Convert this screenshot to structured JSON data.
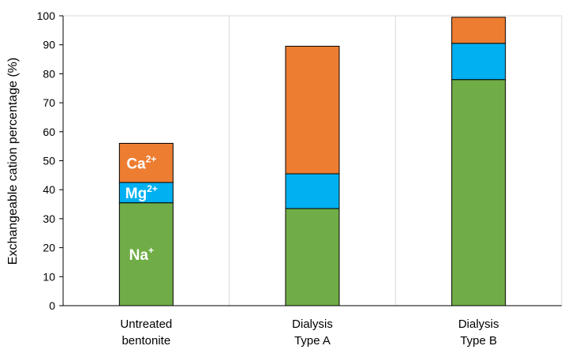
{
  "chart_data": {
    "type": "bar",
    "stacked": true,
    "categories": [
      [
        "Untreated",
        "bentonite"
      ],
      [
        "Dialysis",
        "Type A"
      ],
      [
        "Dialysis",
        "Type B"
      ]
    ],
    "series": [
      {
        "name": "Na+",
        "label_base": "Na",
        "label_sup": "+",
        "color": "#70ad47",
        "values": [
          35.5,
          33.5,
          78
        ]
      },
      {
        "name": "Mg2+",
        "label_base": "Mg",
        "label_sup": "2+",
        "color": "#00b0f0",
        "values": [
          7,
          12,
          12.5
        ]
      },
      {
        "name": "Ca2+",
        "label_base": "Ca",
        "label_sup": "2+",
        "color": "#ed7d31",
        "values": [
          13.5,
          44,
          9
        ]
      }
    ],
    "title": "",
    "xlabel": "",
    "ylabel": "Exchangeable cation percentage (%)",
    "ylim": [
      0,
      100
    ],
    "yticks": [
      0,
      10,
      20,
      30,
      40,
      50,
      60,
      70,
      80,
      90,
      100
    ],
    "grid": "vertical separators between categories",
    "legend": "labels inside first bar"
  }
}
